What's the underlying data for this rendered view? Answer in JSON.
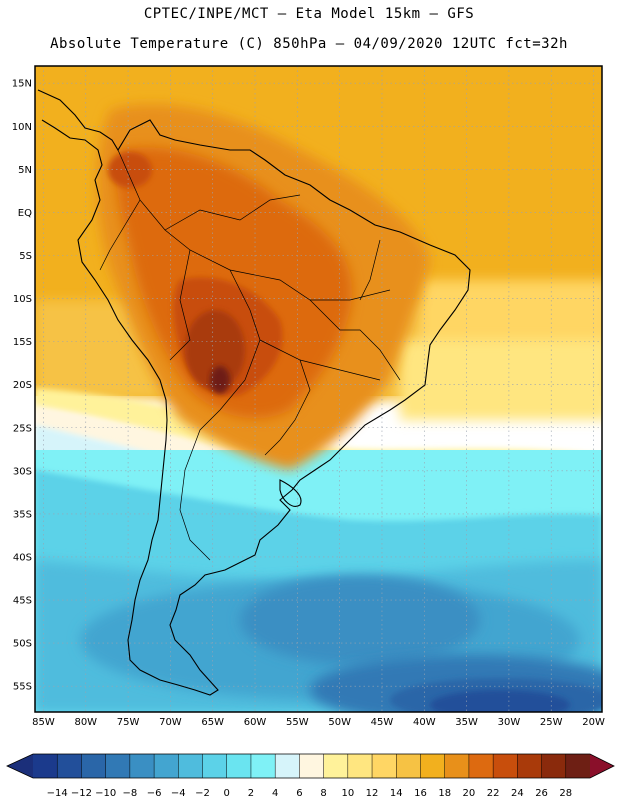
{
  "header": {
    "line1": "CPTEC/INPE/MCT –   Eta Model 15km – GFS",
    "line2": "Absolute Temperature (C) 850hPa – 04/09/2020 12UTC fct=32h"
  },
  "map": {
    "region": "South America",
    "lat_labels": [
      "15N",
      "10N",
      "5N",
      "EQ",
      "5S",
      "10S",
      "15S",
      "20S",
      "25S",
      "30S",
      "35S",
      "40S",
      "45S",
      "50S",
      "55S"
    ],
    "lon_labels": [
      "85W",
      "80W",
      "75W",
      "70W",
      "65W",
      "60W",
      "55W",
      "50W",
      "45W",
      "40W",
      "35W",
      "30W",
      "25W",
      "20W"
    ],
    "lon_range": [
      -86,
      -19
    ],
    "lat_range": [
      -58,
      17
    ]
  },
  "colorbar": {
    "unit": "C",
    "labels": [
      "-14",
      "-12",
      "-10",
      "-8",
      "-6",
      "-4",
      "-2",
      "0",
      "2",
      "4",
      "6",
      "8",
      "10",
      "12",
      "14",
      "16",
      "18",
      "20",
      "22",
      "24",
      "26",
      "28"
    ],
    "colors": [
      "#1b3a8c",
      "#224f9a",
      "#2a66a8",
      "#3179b5",
      "#3a8fc3",
      "#43a5d0",
      "#4fbcdd",
      "#5cd2e8",
      "#6ae4f0",
      "#7ff1f6",
      "#d6f4fa",
      "#fff6e0",
      "#fff29a",
      "#ffe680",
      "#ffd664",
      "#f6c244",
      "#f2b01e",
      "#e8901a",
      "#dd6a10",
      "#c84e0c",
      "#a93a0a",
      "#8a2a0c",
      "#6e1f14"
    ],
    "under_color": "#1b2f7a",
    "over_color": "#8a0f2a"
  }
}
